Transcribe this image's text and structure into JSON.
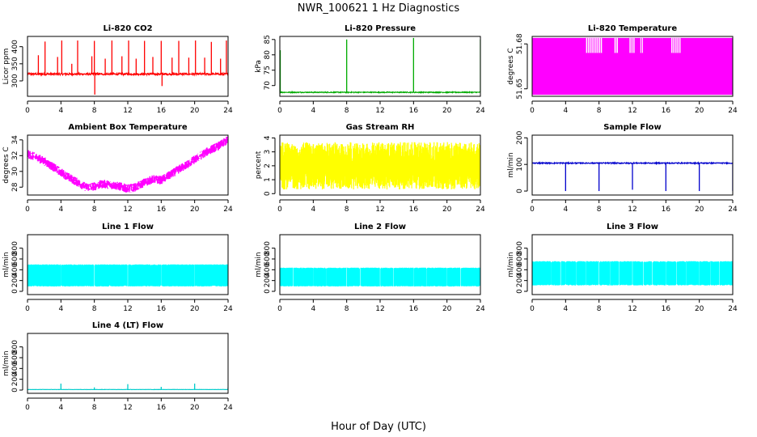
{
  "figure": {
    "title": "NWR_100621  1 Hz Diagnostics",
    "xlabel": "Hour of Day (UTC)"
  },
  "chart_data": [
    {
      "type": "line",
      "title": "Li-820 CO2",
      "ylabel": "Licor ppm",
      "color": "#ff0000",
      "xlim": [
        0,
        24
      ],
      "ylim": [
        255,
        430
      ],
      "xticks": [
        0,
        4,
        8,
        12,
        16,
        20,
        24
      ],
      "yticks": [
        300,
        350,
        400
      ],
      "baseline": 320,
      "noise": 3,
      "spikes": [
        {
          "x": 1.3,
          "y": 375
        },
        {
          "x": 2.1,
          "y": 415
        },
        {
          "x": 3.6,
          "y": 370
        },
        {
          "x": 4.1,
          "y": 418
        },
        {
          "x": 5.3,
          "y": 350
        },
        {
          "x": 6.0,
          "y": 418
        },
        {
          "x": 7.7,
          "y": 372
        },
        {
          "x": 8.0,
          "y": 417
        },
        {
          "x": 8.05,
          "y": 260
        },
        {
          "x": 9.3,
          "y": 365
        },
        {
          "x": 10.1,
          "y": 418
        },
        {
          "x": 11.3,
          "y": 372
        },
        {
          "x": 12.1,
          "y": 418
        },
        {
          "x": 13.0,
          "y": 365
        },
        {
          "x": 14.0,
          "y": 417
        },
        {
          "x": 15.0,
          "y": 370
        },
        {
          "x": 16.0,
          "y": 417
        },
        {
          "x": 16.1,
          "y": 285
        },
        {
          "x": 17.3,
          "y": 368
        },
        {
          "x": 18.1,
          "y": 417
        },
        {
          "x": 19.3,
          "y": 368
        },
        {
          "x": 20.1,
          "y": 418
        },
        {
          "x": 21.2,
          "y": 368
        },
        {
          "x": 22.0,
          "y": 414
        },
        {
          "x": 23.1,
          "y": 365
        },
        {
          "x": 23.8,
          "y": 418
        }
      ]
    },
    {
      "type": "line",
      "title": "Li-820 Pressure",
      "ylabel": "kPa",
      "color": "#00aa00",
      "xlim": [
        0,
        24
      ],
      "ylim": [
        66.5,
        86
      ],
      "xticks": [
        0,
        4,
        8,
        12,
        16,
        20,
        24
      ],
      "yticks": [
        70,
        75,
        80,
        85
      ],
      "baseline": 67.8,
      "noise": 0.15,
      "spikes": [
        {
          "x": 0.05,
          "y": 81.5
        },
        {
          "x": 8.0,
          "y": 85
        },
        {
          "x": 16.0,
          "y": 85.5
        },
        {
          "x": 24.0,
          "y": 85
        }
      ]
    },
    {
      "type": "binary",
      "title": "Li-820 Temperature",
      "ylabel": "degrees C",
      "color": "#ff00ff",
      "xlim": [
        0,
        24
      ],
      "ylim": [
        51.645,
        51.685
      ],
      "xticks": [
        0,
        4,
        8,
        12,
        16,
        20,
        24
      ],
      "yticks": [
        51.65,
        51.68
      ],
      "ytick_labels": [
        "51.65",
        "51.68"
      ],
      "low": 51.646,
      "high": 51.684,
      "mid": 51.674,
      "x_start": 0.05,
      "x_end": 24.0,
      "gaps": [
        {
          "x0": 6.4,
          "x1": 8.4
        },
        {
          "x0": 9.8,
          "x1": 10.3
        },
        {
          "x0": 11.6,
          "x1": 12.3
        },
        {
          "x0": 12.9,
          "x1": 13.3
        },
        {
          "x0": 16.6,
          "x1": 17.8
        }
      ]
    },
    {
      "type": "line",
      "title": "Ambient Box Temperature",
      "ylabel": "degrees C",
      "color": "#ff00ff",
      "xlim": [
        0,
        24
      ],
      "ylim": [
        27,
        34.6
      ],
      "xticks": [
        0,
        4,
        8,
        12,
        16,
        20,
        24
      ],
      "yticks": [
        28,
        30,
        32,
        34
      ],
      "points": [
        [
          0,
          32.2
        ],
        [
          1,
          31.8
        ],
        [
          2,
          31.3
        ],
        [
          3,
          30.6
        ],
        [
          4,
          29.9
        ],
        [
          5,
          29.2
        ],
        [
          6,
          28.6
        ],
        [
          7,
          28.0
        ],
        [
          8,
          28.1
        ],
        [
          9,
          28.4
        ],
        [
          10,
          28.3
        ],
        [
          11,
          28.1
        ],
        [
          12,
          27.8
        ],
        [
          13,
          28.0
        ],
        [
          14,
          28.6
        ],
        [
          15,
          29.0
        ],
        [
          16,
          28.9
        ],
        [
          17,
          29.5
        ],
        [
          18,
          30.2
        ],
        [
          19,
          30.8
        ],
        [
          20,
          31.5
        ],
        [
          21,
          32.2
        ],
        [
          22,
          32.8
        ],
        [
          23,
          33.3
        ],
        [
          24,
          34.0
        ]
      ],
      "noise": 0.55
    },
    {
      "type": "band",
      "title": "Gas Stream RH",
      "ylabel": "percent",
      "color": "#ffff00",
      "xlim": [
        0,
        24
      ],
      "ylim": [
        -0.1,
        4.2
      ],
      "xticks": [
        0,
        4,
        8,
        12,
        16,
        20,
        24
      ],
      "yticks": [
        0,
        1,
        2,
        3,
        4
      ],
      "band_low": 0.3,
      "band_high": 3.7,
      "center": 1.9
    },
    {
      "type": "line",
      "title": "Sample Flow",
      "ylabel": "ml/min",
      "color": "#0000cc",
      "xlim": [
        0,
        24
      ],
      "ylim": [
        -15,
        210
      ],
      "xticks": [
        0,
        4,
        8,
        12,
        16,
        20,
        24
      ],
      "yticks": [
        0,
        100,
        200
      ],
      "baseline": 105,
      "noise": 2,
      "spikes": [
        {
          "x": 4.0,
          "y": 0
        },
        {
          "x": 8.0,
          "y": 0
        },
        {
          "x": 12.0,
          "y": 5
        },
        {
          "x": 16.0,
          "y": 0
        },
        {
          "x": 20.0,
          "y": 0
        },
        {
          "x": 24.0,
          "y": 0
        }
      ]
    },
    {
      "type": "band",
      "title": "Line 1 Flow",
      "ylabel": "ml/min",
      "color": "#00ffff",
      "xlim": [
        0,
        24
      ],
      "ylim": [
        -60,
        1050
      ],
      "xticks": [
        0,
        4,
        8,
        12,
        16,
        20,
        24
      ],
      "yticks": [
        0,
        200,
        400,
        600,
        800
      ],
      "band_low": 90,
      "band_high": 500,
      "center": 300,
      "x_start": 0.05,
      "x_end": 24.0,
      "gaps": [
        {
          "x": 4.0
        },
        {
          "x": 8.0
        },
        {
          "x": 12.0
        },
        {
          "x": 16.0
        },
        {
          "x": 20.0
        }
      ]
    },
    {
      "type": "band",
      "title": "Line 2 Flow",
      "ylabel": "ml/min",
      "color": "#00ffff",
      "xlim": [
        0,
        24
      ],
      "ylim": [
        -60,
        1050
      ],
      "xticks": [
        0,
        4,
        8,
        12,
        16,
        20,
        24
      ],
      "yticks": [
        0,
        200,
        400,
        600,
        800
      ],
      "band_low": 90,
      "band_high": 440,
      "center": 270,
      "x_start": 0.05,
      "x_end": 24.0,
      "gaps": [
        {
          "x": 1.6
        },
        {
          "x": 4.0
        },
        {
          "x": 5.6
        },
        {
          "x": 8.0
        },
        {
          "x": 9.6
        },
        {
          "x": 12.0
        },
        {
          "x": 13.6
        },
        {
          "x": 16.0
        },
        {
          "x": 17.6
        },
        {
          "x": 20.0
        },
        {
          "x": 21.6
        }
      ]
    },
    {
      "type": "band",
      "title": "Line 3 Flow",
      "ylabel": "ml/min",
      "color": "#00ffff",
      "xlim": [
        0,
        24
      ],
      "ylim": [
        -60,
        1050
      ],
      "xticks": [
        0,
        4,
        8,
        12,
        16,
        20,
        24
      ],
      "yticks": [
        0,
        200,
        400,
        600,
        800
      ],
      "band_low": 110,
      "band_high": 560,
      "center": 340,
      "x_start": 0.05,
      "x_end": 24.0,
      "gaps": [
        {
          "x": 2.3
        },
        {
          "x": 3.4
        },
        {
          "x": 4.0
        },
        {
          "x": 5.3
        },
        {
          "x": 6.4
        },
        {
          "x": 8.0
        },
        {
          "x": 9.3
        },
        {
          "x": 10.4
        },
        {
          "x": 12.0
        },
        {
          "x": 13.3
        },
        {
          "x": 14.4
        },
        {
          "x": 16.0
        },
        {
          "x": 17.3
        },
        {
          "x": 18.4
        },
        {
          "x": 20.0
        },
        {
          "x": 21.3
        },
        {
          "x": 22.4
        }
      ]
    },
    {
      "type": "line",
      "title": "Line 4 (LT) Flow",
      "ylabel": "ml/min",
      "color": "#00cccc",
      "xlim": [
        0,
        24
      ],
      "ylim": [
        -60,
        1050
      ],
      "xticks": [
        0,
        4,
        8,
        12,
        16,
        20,
        24
      ],
      "yticks": [
        0,
        200,
        400,
        600,
        800
      ],
      "baseline": 10,
      "noise": 2,
      "spikes": [
        {
          "x": 4.0,
          "y": 120
        },
        {
          "x": 8.0,
          "y": 50
        },
        {
          "x": 12.0,
          "y": 110
        },
        {
          "x": 16.0,
          "y": 60
        },
        {
          "x": 20.0,
          "y": 120
        },
        {
          "x": 24.0,
          "y": 50
        }
      ]
    }
  ]
}
